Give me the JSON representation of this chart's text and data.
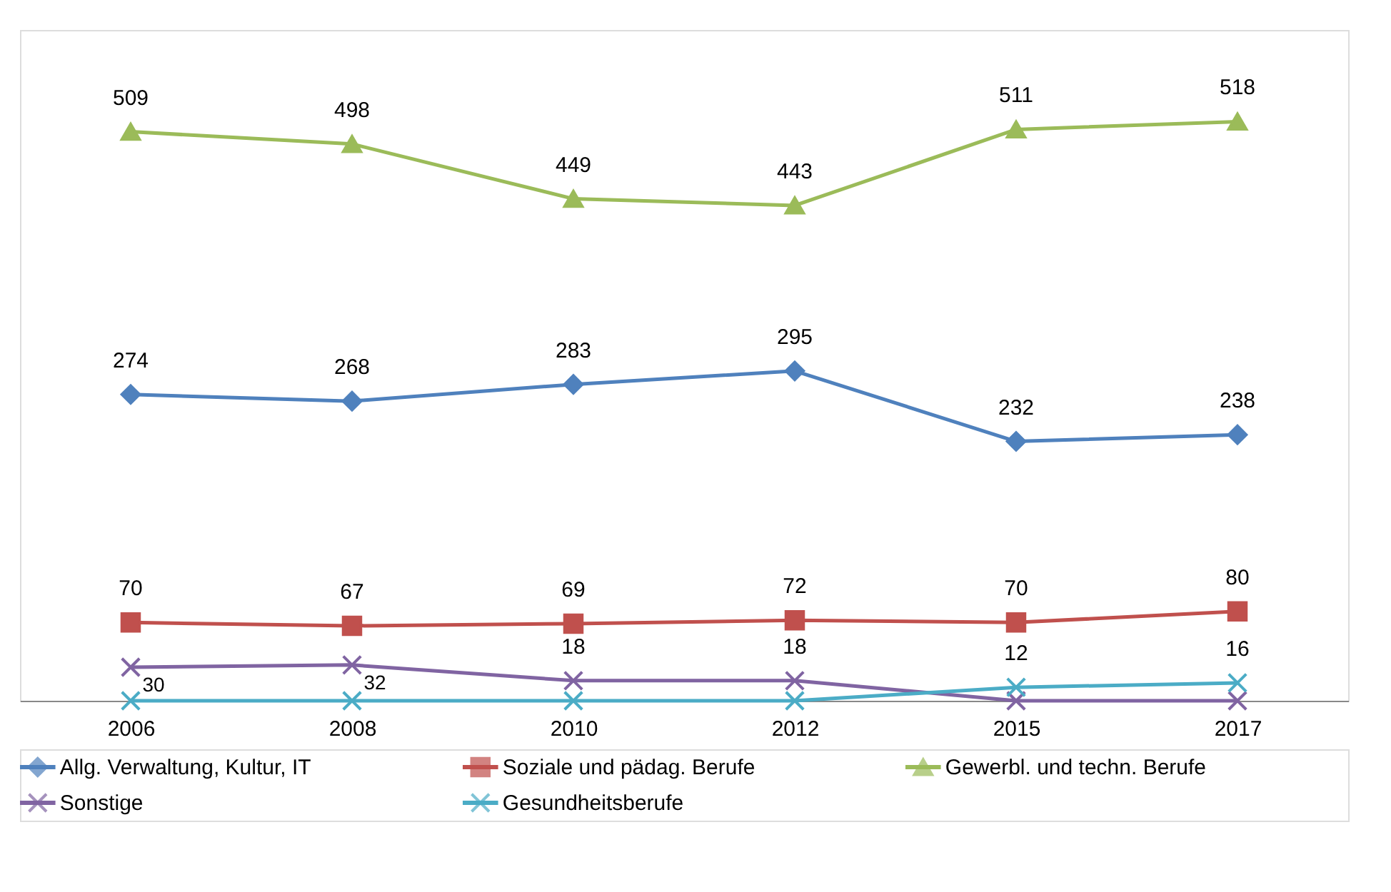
{
  "chart_data": {
    "type": "line",
    "categories": [
      "2006",
      "2008",
      "2010",
      "2012",
      "2015",
      "2017"
    ],
    "ylim": [
      0,
      600
    ],
    "tick_labels": "x",
    "grid": false,
    "legend": "bottom",
    "data_labels": true,
    "series": [
      {
        "name": "Allg. Verwaltung, Kultur, IT",
        "color": "#4f81bd",
        "marker": "diamond",
        "values": [
          274,
          268,
          283,
          295,
          232,
          238
        ]
      },
      {
        "name": "Soziale und pädag. Berufe",
        "color": "#c0504d",
        "marker": "square",
        "values": [
          70,
          67,
          69,
          72,
          70,
          80
        ]
      },
      {
        "name": "Gewerbl. und techn. Berufe",
        "color": "#9bbb59",
        "marker": "triangle",
        "values": [
          509,
          498,
          449,
          443,
          511,
          518
        ]
      },
      {
        "name": "Sonstige",
        "color": "#8064a2",
        "marker": "cross",
        "values": [
          30,
          32,
          18,
          18,
          0,
          0
        ],
        "value_labels": [
          "30",
          "32",
          "18",
          "18",
          null,
          null
        ]
      },
      {
        "name": "Gesundheitsberufe",
        "color": "#4bacc6",
        "marker": "cross",
        "values": [
          0,
          0,
          0,
          0,
          12,
          16
        ],
        "value_labels": [
          null,
          null,
          null,
          null,
          "12",
          "16"
        ]
      }
    ]
  }
}
